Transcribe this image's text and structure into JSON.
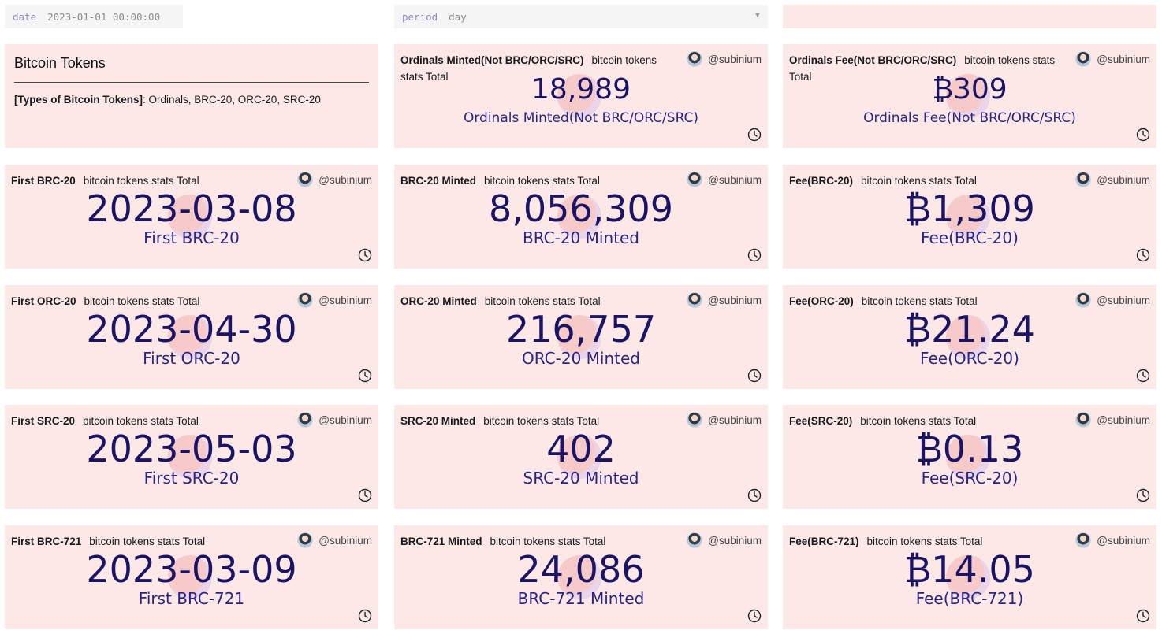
{
  "params": {
    "date": {
      "name": "date",
      "value": "2023-01-01 00:00:00"
    },
    "period": {
      "name": "period",
      "value": "day"
    }
  },
  "intro": {
    "title": "Bitcoin Tokens",
    "types_label": "[Types of Bitcoin Tokens]",
    "types_list": ": Ordinals, BRC-20, ORC-20, SRC-20"
  },
  "author": "@subinium",
  "suffix": "bitcoin tokens stats Total",
  "cards": [
    {
      "title": "Ordinals Minted(Not BRC/ORC/SRC)",
      "value": "18,989",
      "label": "Ordinals Minted(Not BRC/ORC/SRC)"
    },
    {
      "title": "Ordinals Fee(Not BRC/ORC/SRC)",
      "value": "₿309",
      "label": "Ordinals Fee(Not BRC/ORC/SRC)"
    },
    {
      "title": "First BRC-20",
      "value": "2023-03-08",
      "label": "First BRC-20"
    },
    {
      "title": "BRC-20 Minted",
      "value": "8,056,309",
      "label": "BRC-20 Minted"
    },
    {
      "title": "Fee(BRC-20)",
      "value": "₿1,309",
      "label": "Fee(BRC-20)"
    },
    {
      "title": "First ORC-20",
      "value": "2023-04-30",
      "label": "First ORC-20"
    },
    {
      "title": "ORC-20 Minted",
      "value": "216,757",
      "label": "ORC-20 Minted"
    },
    {
      "title": "Fee(ORC-20)",
      "value": "₿21.24",
      "label": "Fee(ORC-20)"
    },
    {
      "title": "First SRC-20",
      "value": "2023-05-03",
      "label": "First SRC-20"
    },
    {
      "title": "SRC-20 Minted",
      "value": "402",
      "label": "SRC-20 Minted"
    },
    {
      "title": "Fee(SRC-20)",
      "value": "₿0.13",
      "label": "Fee(SRC-20)"
    },
    {
      "title": "First BRC-721",
      "value": "2023-03-09",
      "label": "First BRC-721"
    },
    {
      "title": "BRC-721 Minted",
      "value": "24,086",
      "label": "BRC-721 Minted"
    },
    {
      "title": "Fee(BRC-721)",
      "value": "₿14.05",
      "label": "Fee(BRC-721)"
    }
  ],
  "icons": {
    "clock": "clock-icon",
    "avatar": "avatar",
    "dropdown": "chevron-down-icon"
  },
  "colors": {
    "card_bg": "#fde8e8",
    "value": "#1b1464",
    "param_label": "#8a8ac8"
  }
}
